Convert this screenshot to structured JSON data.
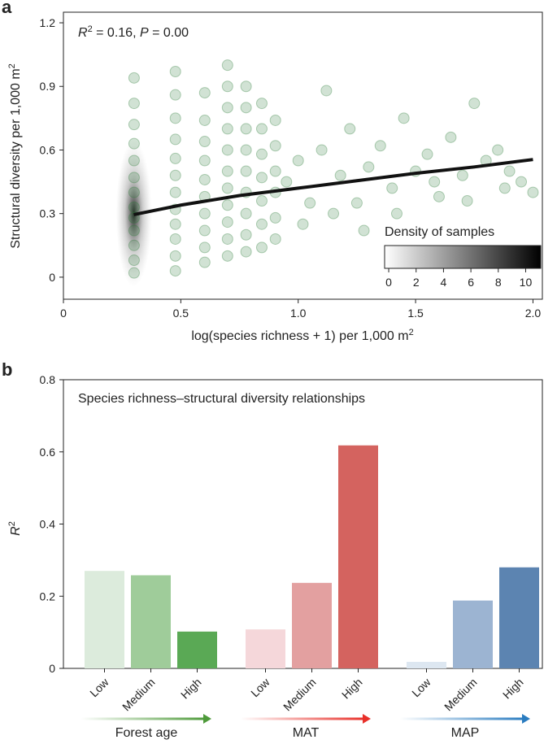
{
  "chart_data": [
    {
      "type": "scatter",
      "panel_label": "a",
      "annotation": {
        "r": "R",
        "r_sup": "2",
        "r_text": " = 0.16, ",
        "p": "P",
        "p_text": " = 0.00"
      },
      "x_label": {
        "text": "log(species richness + 1) per 1,000 m",
        "sup": "2"
      },
      "y_label": {
        "text": "Structural diversity per 1,000 m",
        "sup": "2"
      },
      "xlim": [
        0,
        2.04
      ],
      "ylim": [
        -0.104,
        1.25
      ],
      "xticks": [
        0,
        0.5,
        {
          "value": 1,
          "label": "1.0"
        },
        1.5,
        {
          "value": 2,
          "label": "2.0"
        }
      ],
      "yticks": [
        0,
        0.3,
        0.6,
        0.9,
        1.2
      ],
      "color": "#2e7d3a",
      "x": [
        0.301,
        0.301,
        0.301,
        0.301,
        0.301,
        0.301,
        0.301,
        0.301,
        0.301,
        0.301,
        0.301,
        0.301,
        0.301,
        0.477,
        0.477,
        0.477,
        0.477,
        0.477,
        0.477,
        0.477,
        0.477,
        0.477,
        0.477,
        0.477,
        0.477,
        0.602,
        0.602,
        0.602,
        0.602,
        0.602,
        0.602,
        0.602,
        0.602,
        0.602,
        0.602,
        0.699,
        0.699,
        0.699,
        0.699,
        0.699,
        0.699,
        0.699,
        0.699,
        0.699,
        0.699,
        0.699,
        0.778,
        0.778,
        0.778,
        0.778,
        0.778,
        0.778,
        0.778,
        0.778,
        0.778,
        0.845,
        0.845,
        0.845,
        0.845,
        0.845,
        0.845,
        0.845,
        0.903,
        0.903,
        0.903,
        0.903,
        0.903,
        0.903,
        0.95,
        1.0,
        1.05,
        1.1,
        1.12,
        1.18,
        1.22,
        1.25,
        1.3,
        1.35,
        1.4,
        1.45,
        1.5,
        1.55,
        1.6,
        1.65,
        1.7,
        1.75,
        1.8,
        1.85,
        1.9,
        1.95,
        2.0,
        1.02,
        1.15,
        1.28,
        1.42,
        1.58,
        1.72,
        1.88
      ],
      "y": [
        0.02,
        0.08,
        0.15,
        0.22,
        0.28,
        0.33,
        0.4,
        0.47,
        0.55,
        0.63,
        0.72,
        0.82,
        0.94,
        0.03,
        0.1,
        0.18,
        0.25,
        0.32,
        0.4,
        0.48,
        0.56,
        0.65,
        0.75,
        0.86,
        0.97,
        0.07,
        0.14,
        0.22,
        0.3,
        0.38,
        0.46,
        0.55,
        0.64,
        0.74,
        0.87,
        0.1,
        0.18,
        0.26,
        0.34,
        0.42,
        0.5,
        0.6,
        0.7,
        0.8,
        0.9,
        1.0,
        0.12,
        0.2,
        0.3,
        0.4,
        0.5,
        0.6,
        0.7,
        0.8,
        0.9,
        0.14,
        0.25,
        0.36,
        0.47,
        0.58,
        0.7,
        0.82,
        0.18,
        0.28,
        0.4,
        0.5,
        0.62,
        0.74,
        0.45,
        0.55,
        0.35,
        0.6,
        0.88,
        0.48,
        0.7,
        0.35,
        0.52,
        0.62,
        0.42,
        0.75,
        0.5,
        0.58,
        0.38,
        0.66,
        0.48,
        0.82,
        0.55,
        0.6,
        0.5,
        0.45,
        0.4,
        0.25,
        0.3,
        0.22,
        0.3,
        0.45,
        0.36,
        0.42
      ],
      "fit": {
        "color": "#111111",
        "x": [
          0.3,
          0.5,
          0.75,
          1.0,
          1.25,
          1.5,
          1.75,
          2.0
        ],
        "y": [
          0.295,
          0.34,
          0.385,
          0.42,
          0.455,
          0.49,
          0.52,
          0.555
        ]
      },
      "colorbar": {
        "label": "Density of samples",
        "lim": [
          -0.3,
          11.1
        ],
        "ticks": [
          0,
          2,
          4,
          6,
          8,
          10
        ]
      }
    },
    {
      "type": "bar",
      "panel_label": "b",
      "annotation": "Species richness–structural diversity relationships",
      "y_label": {
        "text": "R",
        "sup": "2"
      },
      "ylim": [
        0,
        0.8
      ],
      "yticks": [
        0,
        0.2,
        0.4,
        0.6,
        0.8
      ],
      "categories": [
        "Low",
        "Medium",
        "High",
        "Low",
        "Medium",
        "High",
        "Low",
        "Medium",
        "High"
      ],
      "values": [
        0.27,
        0.258,
        0.102,
        0.108,
        0.237,
        0.618,
        0.018,
        0.188,
        0.28
      ],
      "colors": [
        "#dcebdc",
        "#9fcc9a",
        "#5aa955",
        "#f5d7da",
        "#e3a0a0",
        "#d4635f",
        "#dde7f1",
        "#9cb4d2",
        "#5c84b1"
      ],
      "groups": [
        {
          "label": "Forest age",
          "color": "#4e9a3a"
        },
        {
          "label": "MAT",
          "color": "#e8302a"
        },
        {
          "label": "MAP",
          "color": "#2a7cc0"
        }
      ]
    }
  ]
}
